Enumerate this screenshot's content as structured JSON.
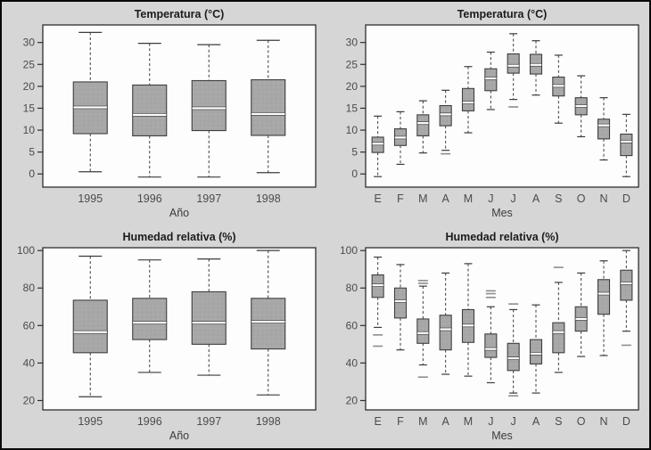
{
  "figure": {
    "description": "Boxplots de temperatura y humedad relativa por año y por mes"
  },
  "colors": {
    "background": "#d6d6d6",
    "outer_border": "#0a0a0a",
    "plot_bg": "#fdfdfd",
    "frame": "#2e2e2e",
    "box_fill": "#a8a8a8",
    "box_speckle_dark": "#989898",
    "box_speckle_light": "#b6b6b6",
    "box_stroke": "#3f3f3f",
    "whisker": "#3c3c3c",
    "median": "#ffffff",
    "outlier": "#8d8d8d",
    "title_text": "#1c1c1c",
    "tick_text": "#4b4b4b",
    "axis_label_text": "#3c3c3c"
  },
  "chart_data": [
    {
      "type": "boxplot",
      "title": "Temperatura (°C)",
      "xlabel": "Año",
      "ylabel": "",
      "categories": [
        "1995",
        "1996",
        "1997",
        "1998"
      ],
      "ylim": [
        -3,
        34
      ],
      "yticks": [
        0,
        5,
        10,
        15,
        20,
        25,
        30
      ],
      "grid": false,
      "boxes": [
        {
          "low": 0.5,
          "q1": 9.2,
          "med": 15.2,
          "q3": 21.0,
          "high": 32.3,
          "outliers": []
        },
        {
          "low": -0.7,
          "q1": 8.7,
          "med": 13.5,
          "q3": 20.3,
          "high": 29.8,
          "outliers": []
        },
        {
          "low": -0.7,
          "q1": 9.9,
          "med": 15.0,
          "q3": 21.3,
          "high": 29.5,
          "outliers": []
        },
        {
          "low": 0.3,
          "q1": 8.8,
          "med": 13.7,
          "q3": 21.5,
          "high": 30.5,
          "outliers": []
        }
      ]
    },
    {
      "type": "boxplot",
      "title": "Temperatura (°C)",
      "xlabel": "Mes",
      "ylabel": "",
      "categories": [
        "E",
        "F",
        "M",
        "A",
        "M",
        "J",
        "J",
        "A",
        "S",
        "O",
        "N",
        "D"
      ],
      "ylim": [
        -3,
        34
      ],
      "yticks": [
        0,
        5,
        10,
        15,
        20,
        25,
        30
      ],
      "grid": false,
      "boxes": [
        {
          "low": -0.6,
          "q1": 4.9,
          "med": 6.9,
          "q3": 8.4,
          "high": 13.2,
          "outliers": []
        },
        {
          "low": 2.2,
          "q1": 6.5,
          "med": 8.3,
          "q3": 10.3,
          "high": 14.2,
          "outliers": []
        },
        {
          "low": 4.8,
          "q1": 8.7,
          "med": 11.6,
          "q3": 13.5,
          "high": 16.7,
          "outliers": []
        },
        {
          "low": 5.4,
          "q1": 11.0,
          "med": 13.6,
          "q3": 15.6,
          "high": 19.1,
          "outliers": [
            4.6
          ]
        },
        {
          "low": 9.4,
          "q1": 14.4,
          "med": 16.3,
          "q3": 19.5,
          "high": 24.5,
          "outliers": []
        },
        {
          "low": 14.7,
          "q1": 19.0,
          "med": 21.8,
          "q3": 24.0,
          "high": 27.8,
          "outliers": []
        },
        {
          "low": 17.0,
          "q1": 23.0,
          "med": 24.7,
          "q3": 27.4,
          "high": 32.0,
          "outliers": [
            15.3
          ]
        },
        {
          "low": 18.0,
          "q1": 22.8,
          "med": 24.9,
          "q3": 27.3,
          "high": 30.4,
          "outliers": []
        },
        {
          "low": 11.6,
          "q1": 17.8,
          "med": 20.1,
          "q3": 22.1,
          "high": 27.1,
          "outliers": []
        },
        {
          "low": 8.5,
          "q1": 13.5,
          "med": 15.5,
          "q3": 17.4,
          "high": 22.4,
          "outliers": []
        },
        {
          "low": 3.2,
          "q1": 8.0,
          "med": 11.1,
          "q3": 12.5,
          "high": 17.4,
          "outliers": []
        },
        {
          "low": -0.6,
          "q1": 4.2,
          "med": 7.4,
          "q3": 9.1,
          "high": 13.6,
          "outliers": []
        }
      ]
    },
    {
      "type": "boxplot",
      "title": "Humedad relativa (%)",
      "xlabel": "Año",
      "ylabel": "",
      "categories": [
        "1995",
        "1996",
        "1997",
        "1998"
      ],
      "ylim": [
        15,
        101.5
      ],
      "yticks": [
        20,
        40,
        60,
        80,
        100
      ],
      "grid": false,
      "boxes": [
        {
          "low": 22,
          "q1": 45.5,
          "med": 56.5,
          "q3": 73.5,
          "high": 97,
          "outliers": []
        },
        {
          "low": 35,
          "q1": 52.5,
          "med": 61.5,
          "q3": 74.5,
          "high": 95,
          "outliers": []
        },
        {
          "low": 33.5,
          "q1": 50.0,
          "med": 61.5,
          "q3": 78.0,
          "high": 95.5,
          "outliers": []
        },
        {
          "low": 23,
          "q1": 47.5,
          "med": 62.0,
          "q3": 74.5,
          "high": 100,
          "outliers": []
        }
      ]
    },
    {
      "type": "boxplot",
      "title": "Humedad relativa (%)",
      "xlabel": "Mes",
      "ylabel": "",
      "categories": [
        "E",
        "F",
        "M",
        "A",
        "M",
        "J",
        "J",
        "A",
        "S",
        "O",
        "N",
        "D"
      ],
      "ylim": [
        15,
        101.5
      ],
      "yticks": [
        20,
        40,
        60,
        80,
        100
      ],
      "grid": false,
      "boxes": [
        {
          "low": 59,
          "q1": 75.0,
          "med": 81.5,
          "q3": 87.0,
          "high": 96.5,
          "outliers": [
            55,
            49
          ]
        },
        {
          "low": 47,
          "q1": 64.0,
          "med": 73.0,
          "q3": 80.0,
          "high": 92.5,
          "outliers": []
        },
        {
          "low": 39,
          "q1": 50.5,
          "med": 56.0,
          "q3": 63.5,
          "high": 81.0,
          "outliers": [
            84,
            82.5,
            32.5
          ]
        },
        {
          "low": 34,
          "q1": 47.0,
          "med": 58.0,
          "q3": 65.5,
          "high": 88.0,
          "outliers": []
        },
        {
          "low": 33,
          "q1": 51.0,
          "med": 60.0,
          "q3": 68.5,
          "high": 93.0,
          "outliers": []
        },
        {
          "low": 29.5,
          "q1": 43.0,
          "med": 47.5,
          "q3": 55.5,
          "high": 70.0,
          "outliers": [
            78.5,
            77,
            75
          ]
        },
        {
          "low": 24,
          "q1": 36.0,
          "med": 42.5,
          "q3": 50.5,
          "high": 68.5,
          "outliers": [
            71.5,
            22.5
          ]
        },
        {
          "low": 24,
          "q1": 39.5,
          "med": 45.0,
          "q3": 52.5,
          "high": 71.0,
          "outliers": []
        },
        {
          "low": 35,
          "q1": 45.5,
          "med": 56.5,
          "q3": 61.5,
          "high": 83.0,
          "outliers": [
            91
          ]
        },
        {
          "low": 43.5,
          "q1": 57.0,
          "med": 63.5,
          "q3": 70.0,
          "high": 88.0,
          "outliers": []
        },
        {
          "low": 44,
          "q1": 66.0,
          "med": 77.0,
          "q3": 84.5,
          "high": 94.5,
          "outliers": []
        },
        {
          "low": 57,
          "q1": 73.5,
          "med": 82.5,
          "q3": 89.5,
          "high": 100,
          "outliers": [
            49.5
          ]
        }
      ]
    }
  ]
}
